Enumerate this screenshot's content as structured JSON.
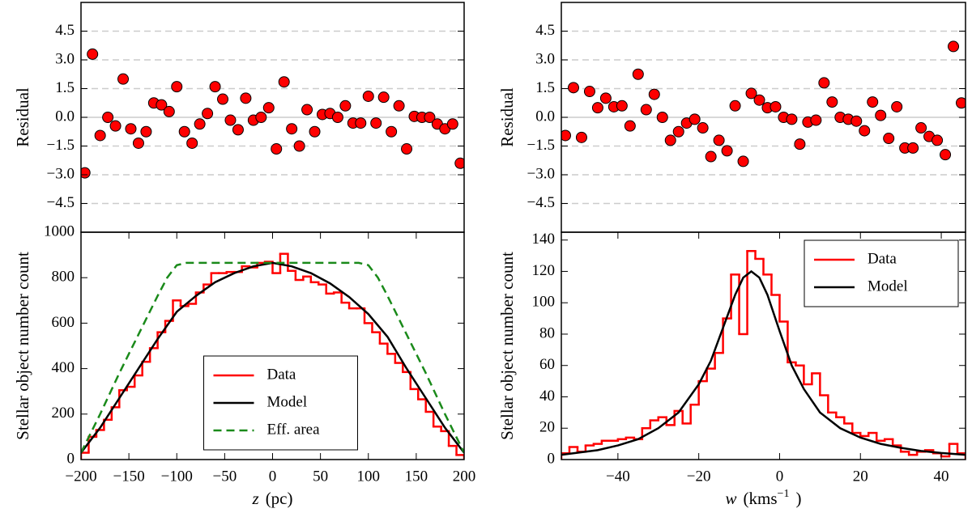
{
  "chart_data": [
    {
      "type": "scatter",
      "ylabel": "Residual",
      "color": "#ff0000",
      "grid": "dashed",
      "zero_line": true,
      "xlim": [
        -200,
        200
      ],
      "ylim": [
        -6,
        6
      ],
      "yticks": [
        {
          "value": -4.5,
          "label": "−4.5"
        },
        {
          "value": -3,
          "label": "−3.0"
        },
        {
          "value": -1.5,
          "label": "−1.5"
        },
        {
          "value": 0,
          "label": "0.0"
        },
        1.5,
        {
          "value": 3,
          "label": "3.0"
        },
        4.5
      ],
      "x": [
        -196,
        -188,
        -180,
        -172,
        -164,
        -156,
        -148,
        -140,
        -132,
        -124,
        -116,
        -108,
        -100,
        -92,
        -84,
        -76,
        -68,
        -60,
        -52,
        -44,
        -36,
        -28,
        -20,
        -12,
        -4,
        4,
        12,
        20,
        28,
        36,
        44,
        52,
        60,
        68,
        76,
        84,
        92,
        100,
        108,
        116,
        124,
        132,
        140,
        148,
        156,
        164,
        172,
        180,
        188,
        196
      ],
      "values": [
        -2.9,
        3.3,
        -0.95,
        0.0,
        -0.45,
        2.0,
        -0.6,
        -1.35,
        -0.75,
        0.75,
        0.65,
        0.3,
        1.6,
        -0.75,
        -1.35,
        -0.35,
        0.2,
        1.6,
        0.95,
        -0.15,
        -0.65,
        1.0,
        -0.15,
        0.0,
        0.5,
        -1.65,
        1.85,
        -0.6,
        -1.5,
        0.4,
        -0.75,
        0.15,
        0.2,
        0.0,
        0.6,
        -0.3,
        -0.3,
        1.1,
        -0.3,
        1.05,
        -0.75,
        0.6,
        -1.65,
        0.05,
        0.0,
        0.0,
        -0.35,
        -0.6,
        -0.35,
        -2.4
      ]
    },
    {
      "type": "histogram",
      "ylabel": "Stellar object number count",
      "xlabel": [
        {
          "text": "z",
          "style": "italic"
        },
        {
          "text": "(pc)"
        }
      ],
      "xlim": [
        -200,
        200
      ],
      "ylim": [
        0,
        1000
      ],
      "xticks": [
        {
          "value": -200,
          "label": "−200"
        },
        {
          "value": -150,
          "label": "−150"
        },
        {
          "value": -100,
          "label": "−100"
        },
        {
          "value": -50,
          "label": "−50"
        },
        0,
        50,
        100,
        150,
        200
      ],
      "yticks": [
        0,
        200,
        400,
        600,
        800,
        1000
      ],
      "legend": "lower center",
      "bins": [
        -200,
        -192,
        -184,
        -176,
        -168,
        -160,
        -152,
        -144,
        -136,
        -128,
        -120,
        -112,
        -104,
        -96,
        -88,
        -80,
        -72,
        -64,
        -56,
        -48,
        -40,
        -32,
        -24,
        -16,
        -8,
        0,
        8,
        16,
        24,
        32,
        40,
        48,
        56,
        64,
        72,
        80,
        88,
        96,
        104,
        112,
        120,
        128,
        136,
        144,
        152,
        160,
        168,
        176,
        184,
        192,
        200
      ],
      "series": [
        {
          "name": "Data",
          "color": "#ff0000",
          "values": [
            30,
            100,
            130,
            175,
            230,
            305,
            320,
            370,
            430,
            490,
            560,
            610,
            700,
            675,
            685,
            735,
            770,
            820,
            820,
            825,
            825,
            850,
            845,
            865,
            870,
            820,
            905,
            830,
            790,
            805,
            780,
            770,
            730,
            735,
            690,
            665,
            665,
            600,
            560,
            510,
            465,
            425,
            385,
            310,
            265,
            210,
            145,
            125,
            60,
            20
          ]
        }
      ],
      "lines": [
        {
          "name": "Model",
          "color": "#000000",
          "dash": "none",
          "x": [
            -200,
            -180,
            -160,
            -140,
            -120,
            -100,
            -80,
            -60,
            -40,
            -20,
            0,
            20,
            40,
            60,
            80,
            100,
            120,
            140,
            160,
            180,
            200
          ],
          "values": [
            30,
            140,
            270,
            400,
            530,
            650,
            720,
            780,
            820,
            850,
            865,
            850,
            820,
            775,
            715,
            640,
            540,
            400,
            270,
            140,
            30
          ]
        },
        {
          "name": "Eff. area",
          "color": "#1a8a1a",
          "dash": "10 6",
          "x": [
            -200,
            -180,
            -160,
            -140,
            -120,
            -110,
            -100,
            -90,
            90,
            100,
            110,
            120,
            140,
            160,
            180,
            200
          ],
          "values": [
            30,
            200,
            380,
            550,
            720,
            800,
            855,
            865,
            865,
            855,
            800,
            720,
            550,
            380,
            200,
            30
          ]
        }
      ]
    },
    {
      "type": "scatter",
      "ylabel": "Residual",
      "color": "#ff0000",
      "grid": "dashed",
      "zero_line": true,
      "xlim": [
        -54,
        46
      ],
      "ylim": [
        -6,
        6
      ],
      "yticks": [
        {
          "value": -4.5,
          "label": "−4.5"
        },
        {
          "value": -3,
          "label": "−3.0"
        },
        {
          "value": -1.5,
          "label": "−1.5"
        },
        {
          "value": 0,
          "label": "0.0"
        },
        1.5,
        {
          "value": 3,
          "label": "3.0"
        },
        4.5
      ],
      "x": [
        -53,
        -51,
        -49,
        -47,
        -45,
        -43,
        -41,
        -39,
        -37,
        -35,
        -33,
        -31,
        -29,
        -27,
        -25,
        -23,
        -21,
        -19,
        -17,
        -15,
        -13,
        -11,
        -9,
        -7,
        -5,
        -3,
        -1,
        1,
        3,
        5,
        7,
        9,
        11,
        13,
        15,
        17,
        19,
        21,
        23,
        25,
        27,
        29,
        31,
        33,
        35,
        37,
        39,
        41,
        43,
        45
      ],
      "values": [
        -0.95,
        1.55,
        -1.05,
        1.35,
        0.5,
        1.0,
        0.55,
        0.6,
        -0.45,
        2.25,
        0.4,
        1.2,
        0.0,
        -1.2,
        -0.75,
        -0.3,
        -0.1,
        -0.55,
        -2.05,
        -1.2,
        -1.75,
        0.6,
        -2.3,
        1.25,
        0.9,
        0.5,
        0.55,
        0.0,
        -0.1,
        -1.4,
        -0.25,
        -0.15,
        1.8,
        0.8,
        0.0,
        -0.1,
        -0.2,
        -0.7,
        0.8,
        0.1,
        -1.1,
        0.55,
        -1.6,
        -1.6,
        -0.55,
        -1.0,
        -1.2,
        -1.95,
        3.7,
        0.75
      ]
    },
    {
      "type": "histogram",
      "ylabel": "Stellar object number count",
      "xlabel": [
        {
          "text": "w",
          "style": "italic"
        },
        {
          "text": "(kms"
        },
        {
          "text": "−1",
          "style": "sup"
        },
        {
          "text": ")"
        }
      ],
      "xlim": [
        -54,
        46
      ],
      "ylim": [
        0,
        145
      ],
      "xticks": [
        {
          "value": -40,
          "label": "−40"
        },
        {
          "value": -20,
          "label": "−20"
        },
        0,
        20,
        40
      ],
      "yticks": [
        0,
        20,
        40,
        60,
        80,
        100,
        120,
        140
      ],
      "legend": "upper right",
      "bins": [
        -54,
        -52,
        -50,
        -48,
        -46,
        -44,
        -42,
        -40,
        -38,
        -36,
        -34,
        -32,
        -30,
        -28,
        -26,
        -24,
        -22,
        -20,
        -18,
        -16,
        -14,
        -12,
        -10,
        -8,
        -6,
        -4,
        -2,
        0,
        2,
        4,
        6,
        8,
        10,
        12,
        14,
        16,
        18,
        20,
        22,
        24,
        26,
        28,
        30,
        32,
        34,
        36,
        38,
        40,
        42,
        44,
        46
      ],
      "series": [
        {
          "name": "Data",
          "color": "#ff0000",
          "values": [
            4,
            8,
            5,
            9,
            10,
            12,
            12,
            13,
            14,
            13,
            20,
            25,
            27,
            22,
            31,
            23,
            35,
            50,
            58,
            68,
            90,
            118,
            80,
            133,
            128,
            118,
            105,
            88,
            62,
            60,
            48,
            55,
            41,
            30,
            27,
            23,
            17,
            15,
            17,
            12,
            13,
            9,
            5,
            3,
            5,
            6,
            4,
            2,
            10,
            4
          ]
        }
      ],
      "lines": [
        {
          "name": "Model",
          "color": "#000000",
          "dash": "none",
          "x": [
            -54,
            -45,
            -40,
            -35,
            -30,
            -25,
            -20,
            -17,
            -14,
            -11,
            -9,
            -7,
            -5,
            -3,
            0,
            3,
            6,
            10,
            15,
            20,
            25,
            30,
            35,
            40,
            46
          ],
          "values": [
            3,
            6,
            9,
            13,
            20,
            30,
            48,
            63,
            84,
            105,
            116,
            120,
            116,
            105,
            82,
            60,
            45,
            30,
            20,
            14,
            10,
            7.5,
            5.5,
            4.2,
            3
          ]
        }
      ]
    }
  ]
}
